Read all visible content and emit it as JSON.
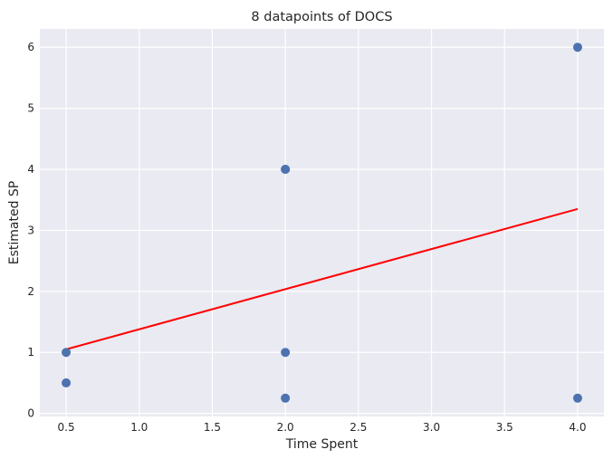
{
  "chart_data": {
    "type": "scatter",
    "title": "8 datapoints of DOCS",
    "xlabel": "Time Spent",
    "ylabel": "Estimated SP",
    "xlim": [
      0.32,
      4.18
    ],
    "ylim": [
      -0.05,
      6.3
    ],
    "xticks": [
      0.5,
      1.0,
      1.5,
      2.0,
      2.5,
      3.0,
      3.5,
      4.0
    ],
    "xtick_labels": [
      "0.5",
      "1.0",
      "1.5",
      "2.0",
      "2.5",
      "3.0",
      "3.5",
      "4.0"
    ],
    "yticks": [
      0,
      1,
      2,
      3,
      4,
      5,
      6
    ],
    "ytick_labels": [
      "0",
      "1",
      "2",
      "3",
      "4",
      "5",
      "6"
    ],
    "grid": true,
    "points": [
      {
        "x": 0.5,
        "y": 1.0
      },
      {
        "x": 0.5,
        "y": 0.5
      },
      {
        "x": 2.0,
        "y": 4.0
      },
      {
        "x": 2.0,
        "y": 4.0
      },
      {
        "x": 2.0,
        "y": 1.0
      },
      {
        "x": 2.0,
        "y": 0.25
      },
      {
        "x": 4.0,
        "y": 6.0
      },
      {
        "x": 4.0,
        "y": 0.25
      }
    ],
    "fit_line": {
      "x": [
        0.5,
        4.0
      ],
      "y": [
        1.05,
        3.35
      ]
    },
    "colors": {
      "background": "#eaeaf2",
      "grid": "#ffffff",
      "points": "#4c72b0",
      "fit_line": "#ff0000",
      "text": "#262626"
    }
  }
}
